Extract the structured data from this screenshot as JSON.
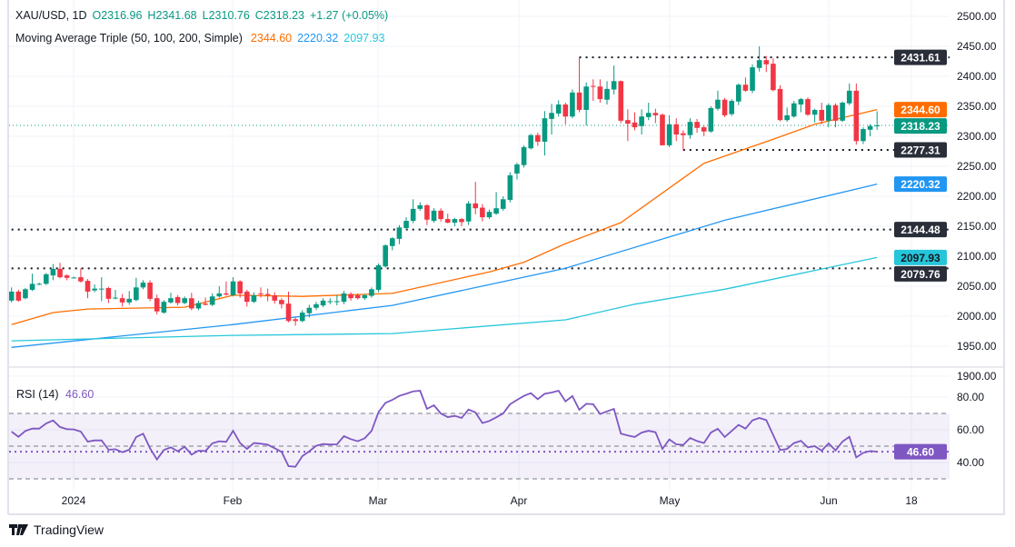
{
  "header": {
    "symbol": "XAU/USD, 1D",
    "open": "O2316.96",
    "high": "H2341.68",
    "low": "L2310.76",
    "close": "C2318.23",
    "change": "+1.27 (+0.05%)",
    "ma_title": "Moving Average Triple (50, 100, 200, Simple)",
    "ma50_value": "2344.60",
    "ma100_value": "2220.32",
    "ma200_value": "2097.93"
  },
  "rsi_legend": {
    "title": "RSI (14)",
    "value": "46.60"
  },
  "branding": {
    "logo_text": "TradingView"
  },
  "colors": {
    "up": "#089981",
    "down": "#f23645",
    "ma50": "#ff6d00",
    "ma100": "#2196f3",
    "ma200": "#26c6da",
    "rsi": "#7e57c2",
    "level_label": "#2a2e39"
  },
  "chart_data": [
    {
      "type": "candlestick",
      "title": "XAU/USD, 1D",
      "ylim": [
        1900,
        2500
      ],
      "y_ticks": [
        "2500.00",
        "2450.00",
        "2400.00",
        "2350.00",
        "2300.00",
        "2250.00",
        "2200.00",
        "2150.00",
        "2100.00",
        "2050.00",
        "2000.00",
        "1950.00",
        "1900.00"
      ],
      "x_ticks": [
        "2024",
        "Feb",
        "Mar",
        "Apr",
        "May",
        "Jun",
        "18"
      ],
      "grid": true,
      "candles_ohlc": [
        [
          2026,
          2048,
          2023,
          2041
        ],
        [
          2041,
          2044,
          2024,
          2026
        ],
        [
          2030,
          2047,
          2028,
          2045
        ],
        [
          2044,
          2071,
          2042,
          2054
        ],
        [
          2053,
          2056,
          2052,
          2054
        ],
        [
          2054,
          2072,
          2052,
          2070
        ],
        [
          2068,
          2087,
          2060,
          2079
        ],
        [
          2079,
          2089,
          2063,
          2065
        ],
        [
          2068,
          2070,
          2060,
          2064
        ],
        [
          2064,
          2066,
          2063,
          2064.5
        ],
        [
          2065,
          2080,
          2056,
          2058
        ],
        [
          2059,
          2062,
          2030,
          2041
        ],
        [
          2043,
          2053,
          2040,
          2046
        ],
        [
          2045,
          2065,
          2025,
          2046
        ],
        [
          2047,
          2049,
          2022,
          2029
        ],
        [
          2030,
          2044,
          2028,
          2031
        ],
        [
          2030,
          2037,
          2016,
          2023
        ],
        [
          2023,
          2042,
          2019,
          2029
        ],
        [
          2027,
          2064,
          2025,
          2048
        ],
        [
          2048,
          2060,
          2045,
          2056
        ],
        [
          2056,
          2060,
          2025,
          2029
        ],
        [
          2030,
          2036,
          2003,
          2008
        ],
        [
          2006,
          2027,
          2004,
          2024
        ],
        [
          2023,
          2039,
          2021,
          2030
        ],
        [
          2032,
          2035,
          2018,
          2022
        ],
        [
          2022,
          2033,
          2020,
          2030
        ],
        [
          2030,
          2039,
          2010,
          2013
        ],
        [
          2013,
          2026,
          2010,
          2022
        ],
        [
          2021,
          2031,
          2018,
          2019
        ],
        [
          2019,
          2038,
          2017,
          2033
        ],
        [
          2033,
          2050,
          2031,
          2038
        ],
        [
          2038,
          2058,
          2034,
          2036
        ],
        [
          2035,
          2065,
          2033,
          2058
        ],
        [
          2058,
          2060,
          2031,
          2038
        ],
        [
          2041,
          2044,
          2016,
          2024
        ],
        [
          2024,
          2040,
          2022,
          2035
        ],
        [
          2038,
          2048,
          2031,
          2037
        ],
        [
          2037,
          2046,
          2025,
          2035
        ],
        [
          2035,
          2040,
          2021,
          2026
        ],
        [
          2027,
          2030,
          2013,
          2020
        ],
        [
          2021,
          2041,
          1990,
          1992
        ],
        [
          1995,
          1998,
          1984,
          1992
        ],
        [
          1992,
          2010,
          1990,
          2006
        ],
        [
          2005,
          2019,
          1998,
          2014
        ],
        [
          2014,
          2024,
          2010,
          2020
        ],
        [
          2018,
          2030,
          2015,
          2026
        ],
        [
          2024,
          2030,
          2020,
          2025
        ],
        [
          2024,
          2035,
          2018,
          2025
        ],
        [
          2024,
          2042,
          2020,
          2038
        ],
        [
          2037,
          2040,
          2026,
          2030
        ],
        [
          2035,
          2038,
          2028,
          2030
        ],
        [
          2030,
          2037,
          2027,
          2035
        ],
        [
          2034,
          2048,
          2031,
          2045
        ],
        [
          2044,
          2088,
          2040,
          2085
        ],
        [
          2083,
          2120,
          2081,
          2118
        ],
        [
          2117,
          2132,
          2110,
          2130
        ],
        [
          2129,
          2152,
          2120,
          2148
        ],
        [
          2147,
          2165,
          2144,
          2159
        ],
        [
          2159,
          2195,
          2155,
          2179
        ],
        [
          2179,
          2190,
          2176,
          2185
        ],
        [
          2185,
          2187,
          2152,
          2161
        ],
        [
          2159,
          2180,
          2156,
          2176
        ],
        [
          2176,
          2180,
          2158,
          2162
        ],
        [
          2162,
          2171,
          2155,
          2156
        ],
        [
          2156,
          2164,
          2150,
          2162
        ],
        [
          2162,
          2164,
          2150,
          2157
        ],
        [
          2158,
          2192,
          2152,
          2188
        ],
        [
          2188,
          2224,
          2170,
          2180
        ],
        [
          2181,
          2187,
          2158,
          2165
        ],
        [
          2165,
          2178,
          2162,
          2174
        ],
        [
          2171,
          2207,
          2169,
          2180
        ],
        [
          2179,
          2200,
          2176,
          2195
        ],
        [
          2194,
          2240,
          2190,
          2235
        ],
        [
          2238,
          2256,
          2228,
          2253
        ],
        [
          2252,
          2285,
          2248,
          2282
        ],
        [
          2280,
          2304,
          2278,
          2302
        ],
        [
          2302,
          2306,
          2284,
          2291
        ],
        [
          2291,
          2342,
          2268,
          2330
        ],
        [
          2329,
          2354,
          2303,
          2339
        ],
        [
          2338,
          2360,
          2333,
          2353
        ],
        [
          2353,
          2356,
          2320,
          2333
        ],
        [
          2333,
          2378,
          2330,
          2373
        ],
        [
          2373,
          2432,
          2340,
          2344
        ],
        [
          2344,
          2390,
          2318,
          2383
        ],
        [
          2384,
          2395,
          2359,
          2383
        ],
        [
          2383,
          2395,
          2356,
          2362
        ],
        [
          2361,
          2392,
          2353,
          2379
        ],
        [
          2378,
          2418,
          2370,
          2392
        ],
        [
          2392,
          2393,
          2322,
          2326
        ],
        [
          2327,
          2345,
          2292,
          2321
        ],
        [
          2323,
          2340,
          2310,
          2315
        ],
        [
          2317,
          2345,
          2303,
          2333
        ],
        [
          2332,
          2356,
          2327,
          2339
        ],
        [
          2339,
          2346,
          2322,
          2335
        ],
        [
          2336,
          2338,
          2285,
          2285
        ],
        [
          2285,
          2335,
          2282,
          2320
        ],
        [
          2320,
          2330,
          2292,
          2303
        ],
        [
          2305,
          2310,
          2277,
          2302
        ],
        [
          2302,
          2330,
          2296,
          2324
        ],
        [
          2324,
          2329,
          2306,
          2314
        ],
        [
          2315,
          2318,
          2300,
          2308
        ],
        [
          2308,
          2350,
          2306,
          2347
        ],
        [
          2346,
          2376,
          2343,
          2361
        ],
        [
          2361,
          2364,
          2332,
          2335
        ],
        [
          2337,
          2362,
          2334,
          2359
        ],
        [
          2358,
          2388,
          2352,
          2386
        ],
        [
          2386,
          2398,
          2374,
          2376
        ],
        [
          2376,
          2420,
          2372,
          2415
        ],
        [
          2414,
          2450,
          2408,
          2427
        ],
        [
          2427,
          2434,
          2407,
          2420
        ],
        [
          2421,
          2430,
          2375,
          2377
        ],
        [
          2379,
          2385,
          2325,
          2327
        ],
        [
          2327,
          2348,
          2324,
          2335
        ],
        [
          2333,
          2359,
          2331,
          2355
        ],
        [
          2353,
          2364,
          2340,
          2362
        ],
        [
          2362,
          2365,
          2334,
          2336
        ],
        [
          2336,
          2346,
          2323,
          2344
        ],
        [
          2344,
          2356,
          2320,
          2326
        ],
        [
          2326,
          2355,
          2315,
          2352
        ],
        [
          2352,
          2355,
          2315,
          2326
        ],
        [
          2326,
          2358,
          2324,
          2356
        ],
        [
          2355,
          2388,
          2352,
          2376
        ],
        [
          2376,
          2388,
          2286,
          2292
        ],
        [
          2292,
          2315,
          2287,
          2312
        ],
        [
          2311,
          2320,
          2300,
          2317
        ],
        [
          2316.96,
          2341.68,
          2310.76,
          2318.23
        ]
      ],
      "moving_averages": [
        {
          "name": "MA 50",
          "color": "#ff6d00",
          "last": "2344.60",
          "points_bar_value": [
            [
              0,
              1986
            ],
            [
              6,
              2006
            ],
            [
              11,
              2012
            ],
            [
              25,
              2015
            ],
            [
              32,
              2035
            ],
            [
              42,
              2033
            ],
            [
              55,
              2038
            ],
            [
              69,
              2074
            ],
            [
              74,
              2090
            ],
            [
              80,
              2121
            ],
            [
              88,
              2156
            ],
            [
              100,
              2255
            ],
            [
              110,
              2295
            ],
            [
              116,
              2320
            ],
            [
              125,
              2344.6
            ]
          ]
        },
        {
          "name": "MA 100",
          "color": "#2196f3",
          "last": "2220.32",
          "points_bar_value": [
            [
              0,
              1948
            ],
            [
              32,
              1986
            ],
            [
              55,
              2018
            ],
            [
              80,
              2080
            ],
            [
              103,
              2160
            ],
            [
              125,
              2220.32
            ]
          ]
        },
        {
          "name": "MA 200",
          "color": "#26c6da",
          "last": "2097.93",
          "points_bar_value": [
            [
              0,
              1959
            ],
            [
              32,
              1968
            ],
            [
              55,
              1971
            ],
            [
              80,
              1994
            ],
            [
              90,
              2020
            ],
            [
              103,
              2045
            ],
            [
              125,
              2097.93
            ]
          ]
        }
      ],
      "horizontal_levels": [
        {
          "value": "2431.61",
          "from_bar": 82
        },
        {
          "value": "2277.31",
          "from_bar": 97
        },
        {
          "value": "2144.48",
          "from_bar": 0
        },
        {
          "value": "2079.76",
          "from_bar": 0
        }
      ],
      "last_price": "2318.23"
    },
    {
      "type": "line",
      "title": "RSI (14)",
      "ylim": [
        25,
        90
      ],
      "y_ticks": [
        "80.00",
        "60.00",
        "40.00"
      ],
      "band": [
        30,
        70
      ],
      "midline": 50,
      "last": "46.60",
      "values": [
        58.9,
        55.7,
        59.3,
        60.7,
        60.7,
        63.9,
        65.7,
        61.7,
        60.4,
        60.2,
        58.9,
        52.8,
        53.5,
        53.5,
        47.8,
        48.1,
        46.3,
        47.8,
        55.6,
        57.6,
        48.7,
        41.9,
        47.6,
        49.3,
        46.9,
        49.6,
        44.8,
        47.2,
        47,
        51.7,
        53,
        52.6,
        59.4,
        51.9,
        48.3,
        51.9,
        51.5,
        50.9,
        48.7,
        46.5,
        37.8,
        37.4,
        43.9,
        46.9,
        50.2,
        51.3,
        51,
        51.1,
        56.1,
        54.3,
        53,
        54.8,
        59.3,
        70.9,
        76.5,
        78.3,
        80.7,
        82,
        83.5,
        83.9,
        72.8,
        75,
        70,
        67.8,
        68.5,
        67.2,
        72.4,
        70.6,
        64.1,
        65.4,
        67.6,
        70,
        75.6,
        78.3,
        80.7,
        82.4,
        78.7,
        82,
        82.8,
        83.9,
        77.4,
        80.6,
        72.2,
        75.9,
        75.6,
        69.6,
        71.3,
        72.8,
        57.6,
        56.5,
        55.6,
        58.3,
        59.4,
        58.5,
        48.3,
        54.1,
        51.1,
        50.7,
        55,
        53.1,
        51.9,
        58.3,
        60.6,
        55.6,
        59.3,
        63,
        60.7,
        65.7,
        67.2,
        65.9,
        56.7,
        47.6,
        48.3,
        51.9,
        53.3,
        49.3,
        50,
        47.2,
        51.7,
        47.4,
        52.8,
        55.7,
        43.1,
        45.9,
        47,
        46.6
      ]
    }
  ]
}
